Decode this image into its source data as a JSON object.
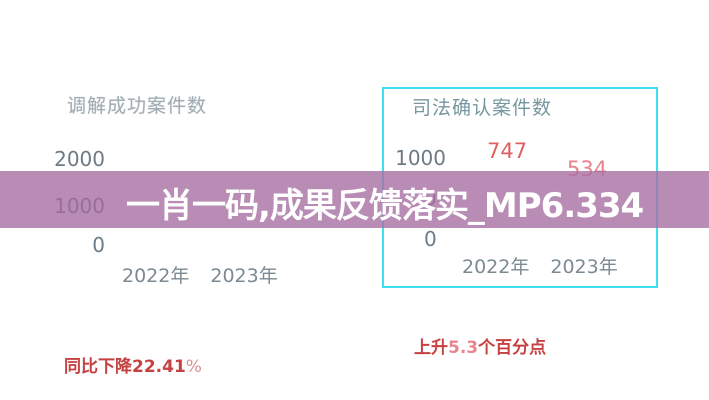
{
  "banner": {
    "text": "一肖一码,成果反馈落实_MP6.334",
    "bg_color": "#a873a5",
    "text_color": "#ffffff"
  },
  "left_chart": {
    "title": "调解成功案件数",
    "yticks": [
      "2000",
      "1000",
      "0"
    ],
    "xticks": [
      "2022年",
      "2023年"
    ],
    "annotation": {
      "prefix": "同比下降22.41",
      "percent": "%",
      "color": "#c64141"
    }
  },
  "right_chart": {
    "title": "司法确认案件数",
    "border_color": "#3bdfee",
    "yticks": [
      "1000",
      "0"
    ],
    "partial_mid_tick": "0",
    "data_labels": [
      "747",
      "534"
    ],
    "data_label_colors": [
      "#e05f5f",
      "#e8818e"
    ],
    "xticks": [
      "2022年",
      "2023年"
    ],
    "annotation": {
      "prefix": "上升",
      "value": "5.3",
      "suffix": "个百分点",
      "color": "#c64141"
    }
  },
  "chart_data": [
    {
      "type": "bar",
      "title": "调解成功案件数",
      "categories": [
        "2022年",
        "2023年"
      ],
      "values": [
        null,
        null
      ],
      "yticks": [
        0,
        1000,
        2000
      ],
      "ylim": [
        0,
        2000
      ],
      "annotation": "同比下降22.41%",
      "note": "bars themselves are not visible in the screenshot; only axis ticks, category labels and the annotation are rendered"
    },
    {
      "type": "bar",
      "title": "司法确认案件数",
      "categories": [
        "2022年",
        "2023年"
      ],
      "values": [
        747,
        534
      ],
      "yticks": [
        0,
        1000
      ],
      "ylim": [
        0,
        1000
      ],
      "annotation": "上升5.3个百分点",
      "note": "bars themselves are not visible; values read from red data labels above each category"
    }
  ]
}
